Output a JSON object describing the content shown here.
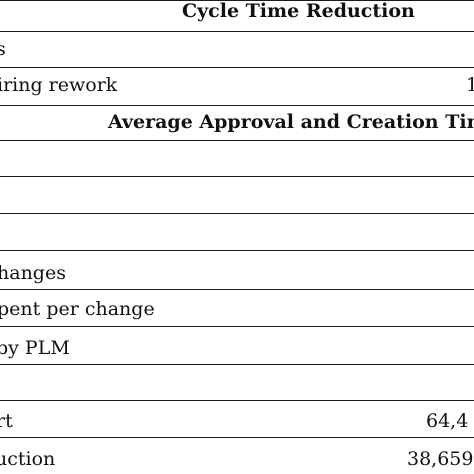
{
  "table": {
    "section_headers": {
      "cycle_time": "Cycle Time Reduction",
      "approval_time": "Average Approval and Creation Time"
    },
    "rows": [
      {
        "label": "s",
        "value": ""
      },
      {
        "label": "iring rework",
        "value": "1"
      },
      {
        "label": "",
        "value": ""
      },
      {
        "label": "",
        "value": ""
      },
      {
        "label": "",
        "value": ""
      },
      {
        "label": "hanges",
        "value": ""
      },
      {
        "label": "pent per change",
        "value": ""
      },
      {
        "label": "by PLM",
        "value": ""
      },
      {
        "label": "",
        "value": ""
      },
      {
        "label": "rt",
        "value": "64,4"
      },
      {
        "label": "uction",
        "value": "38,659"
      }
    ]
  }
}
